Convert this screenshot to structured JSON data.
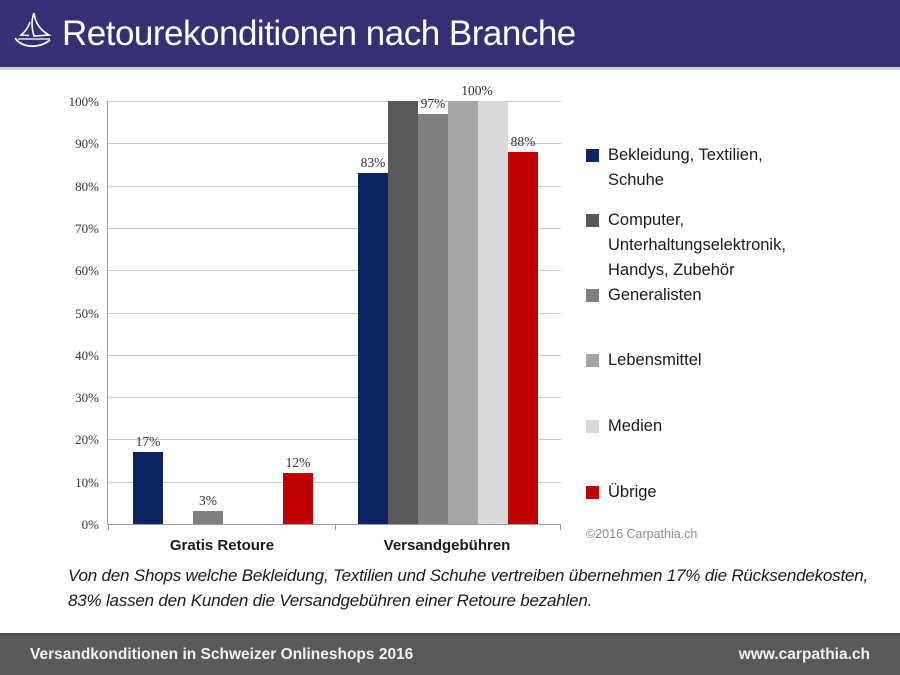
{
  "header": {
    "title": "Retourekonditionen nach Branche",
    "bg_color": "#352f74",
    "logo": "sailboat-icon"
  },
  "chart_data": {
    "type": "bar",
    "title": "Retourekonditionen nach Branche",
    "categories": [
      "Gratis Retoure",
      "Versandgebühren"
    ],
    "series": [
      {
        "name": "Bekleidung, Textilien, Schuhe",
        "legend_lines": [
          "Bekleidung, Textilien,",
          "Schuhe"
        ],
        "color": "#0d2463",
        "values": [
          17,
          83
        ],
        "data_labels": [
          "17%",
          "83%"
        ]
      },
      {
        "name": "Computer, Unterhaltungselektronik, Handys, Zubehör",
        "legend_lines": [
          "Computer,",
          "Unterhaltungselektronik,",
          "Handys, Zubehör"
        ],
        "color": "#595959",
        "values": [
          0,
          100
        ],
        "data_labels": [
          "",
          ""
        ]
      },
      {
        "name": "Generalisten",
        "legend_lines": [
          "Generalisten"
        ],
        "color": "#7f7f7f",
        "values": [
          3,
          97
        ],
        "data_labels": [
          "3%",
          "97%"
        ]
      },
      {
        "name": "Lebensmittel",
        "legend_lines": [
          "Lebensmittel"
        ],
        "color": "#a6a6a6",
        "values": [
          0,
          100
        ],
        "data_labels": [
          "",
          "100%"
        ]
      },
      {
        "name": "Medien",
        "legend_lines": [
          "Medien"
        ],
        "color": "#d9d9d9",
        "values": [
          0,
          100
        ],
        "data_labels": [
          "",
          ""
        ]
      },
      {
        "name": "Übrige",
        "legend_lines": [
          "Übrige"
        ],
        "color": "#c00000",
        "values": [
          12,
          88
        ],
        "data_labels": [
          "12%",
          "88%"
        ]
      }
    ],
    "ylim": [
      0,
      100
    ],
    "ytick_labels": [
      "0%",
      "10%",
      "20%",
      "30%",
      "40%",
      "50%",
      "60%",
      "70%",
      "80%",
      "90%",
      "100%"
    ],
    "grid": true,
    "legend_position": "right"
  },
  "copyright": "©2016 Carpathia.ch",
  "note": {
    "line1": "Von den Shops welche Bekleidung, Textilien und Schuhe vertreiben übernehmen 17% die Rücksendekosten,",
    "line2": "83% lassen den Kunden die Versandgebühren einer Retoure bezahlen."
  },
  "footer": {
    "left": "Versandkonditionen in Schweizer Onlineshops 2016",
    "right": "www.carpathia.ch",
    "bg_color": "#59595b"
  }
}
